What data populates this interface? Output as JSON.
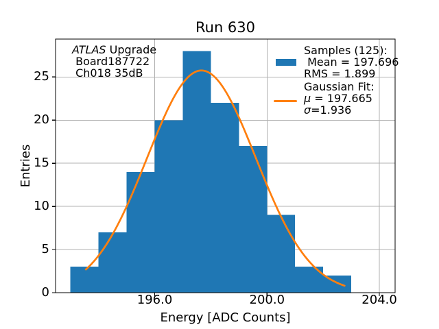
{
  "title": "Run 630",
  "axis": {
    "xlabel": "Energy [ADC Counts]",
    "ylabel": "Entries"
  },
  "annotation": {
    "atlas_italic": "ATLAS",
    "line1_rest": " Upgrade",
    "line2": " Board187722",
    "line3": " Ch018 35dB"
  },
  "legend": {
    "samples_title": "Samples (125):",
    "mean_line": " Mean = 197.696",
    "rms_line": "RMS = 1.899",
    "fit_title": "Gaussian Fit:",
    "mu_symbol": "μ",
    "mu_rest": " = 197.665",
    "sigma_symbol": "σ",
    "sigma_rest": "=1.936"
  },
  "chart_data": {
    "type": "bar",
    "subtype": "histogram",
    "title": "Run 630",
    "xlabel": "Energy [ADC Counts]",
    "ylabel": "Entries",
    "bin_edges": [
      193,
      194,
      195,
      196,
      197,
      198,
      199,
      200,
      201,
      202,
      203
    ],
    "counts": [
      3,
      7,
      14,
      20,
      28,
      22,
      17,
      9,
      3,
      2
    ],
    "n_samples": 125,
    "mean": 197.696,
    "rms": 1.899,
    "gaussian_fit": {
      "mu": 197.665,
      "sigma": 1.936,
      "amplitude": 25.76,
      "x_start": 193.55,
      "x_end": 202.76
    },
    "xlim": [
      192.47,
      204.56
    ],
    "ylim": [
      0,
      29.4
    ],
    "xticks": [
      196,
      200,
      204
    ],
    "xtick_labels": [
      "196.0",
      "200.0",
      "204.0"
    ],
    "yticks": [
      0,
      5,
      10,
      15,
      20,
      25
    ],
    "ytick_labels": [
      "0",
      "5",
      "10",
      "15",
      "20",
      "25"
    ],
    "grid": true,
    "legend_position": "upper right",
    "colors": {
      "bar": "#1f77b4",
      "curve": "#ff7f0e",
      "grid": "#b0b0b0",
      "spine": "#000000",
      "text": "#000000",
      "background": "#ffffff"
    }
  }
}
